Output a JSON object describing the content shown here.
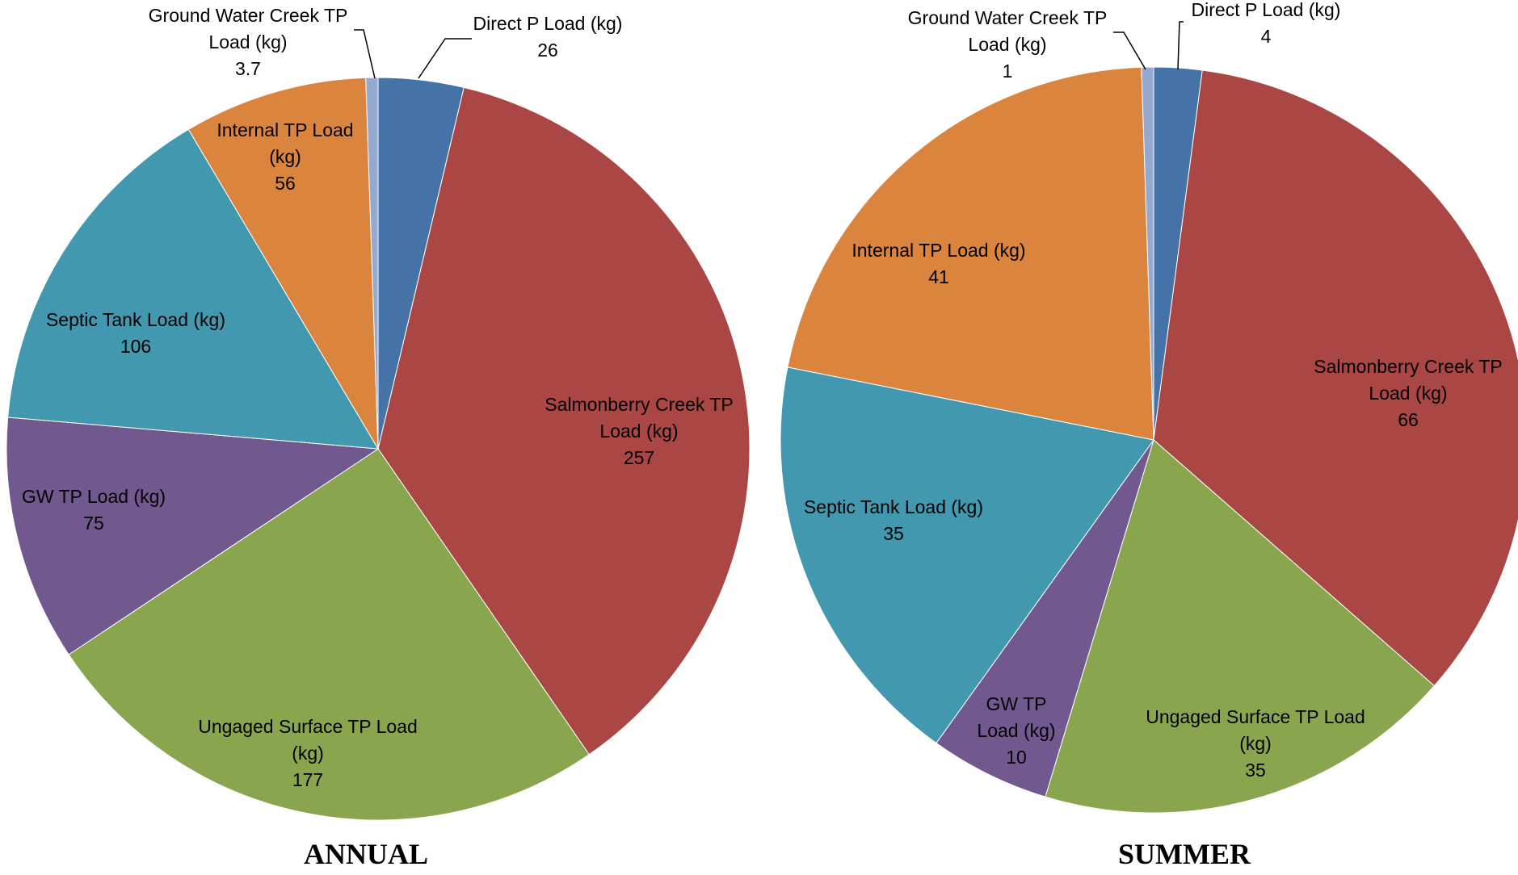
{
  "chart_data": [
    {
      "type": "pie",
      "title": "ANNUAL",
      "unit": "kg",
      "slices": [
        {
          "label_lines": [
            "Direct P Load (kg)"
          ],
          "value": 26,
          "value_text": "26",
          "color": "#4572A7"
        },
        {
          "label_lines": [
            "Salmonberry Creek TP",
            "Load (kg)"
          ],
          "value": 257,
          "value_text": "257",
          "color": "#AA4643"
        },
        {
          "label_lines": [
            "Ungaged Surface TP Load",
            "(kg)"
          ],
          "value": 177,
          "value_text": "177",
          "color": "#89A54E"
        },
        {
          "label_lines": [
            "GW TP Load (kg)"
          ],
          "value": 75,
          "value_text": "75",
          "color": "#71588F"
        },
        {
          "label_lines": [
            "Septic Tank Load (kg)"
          ],
          "value": 106,
          "value_text": "106",
          "color": "#4198AF"
        },
        {
          "label_lines": [
            "Internal TP Load",
            "(kg)"
          ],
          "value": 56,
          "value_text": "56",
          "color": "#DB843D"
        },
        {
          "label_lines": [
            "Ground Water Creek TP",
            "Load (kg)"
          ],
          "value": 3.7,
          "value_text": "3.7",
          "color": "#93A9CF"
        }
      ]
    },
    {
      "type": "pie",
      "title": "SUMMER",
      "unit": "kg",
      "slices": [
        {
          "label_lines": [
            "Direct P Load (kg)"
          ],
          "value": 4,
          "value_text": "4",
          "color": "#4572A7"
        },
        {
          "label_lines": [
            "Salmonberry Creek TP",
            "Load (kg)"
          ],
          "value": 66,
          "value_text": "66",
          "color": "#AA4643"
        },
        {
          "label_lines": [
            "Ungaged Surface TP Load",
            "(kg)"
          ],
          "value": 35,
          "value_text": "35",
          "color": "#89A54E"
        },
        {
          "label_lines": [
            "GW TP",
            "Load (kg)"
          ],
          "value": 10,
          "value_text": "10",
          "color": "#71588F"
        },
        {
          "label_lines": [
            "Septic Tank Load (kg)"
          ],
          "value": 35,
          "value_text": "35",
          "color": "#4198AF"
        },
        {
          "label_lines": [
            "Internal TP Load (kg)"
          ],
          "value": 41,
          "value_text": "41",
          "color": "#DB843D"
        },
        {
          "label_lines": [
            "Ground Water Creek TP",
            "Load (kg)"
          ],
          "value": 1,
          "value_text": "1",
          "color": "#93A9CF"
        }
      ]
    }
  ]
}
